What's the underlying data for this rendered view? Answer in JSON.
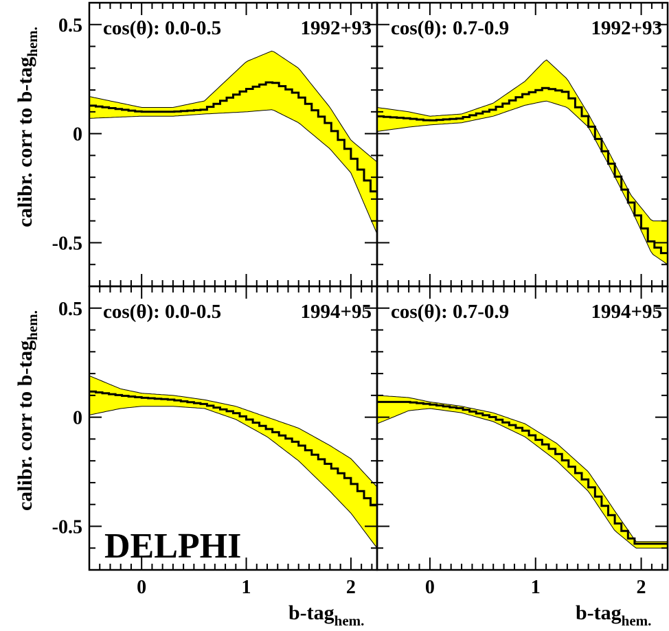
{
  "figure": {
    "ylabel": "calibr. corr to b-tag",
    "ylabel_sub": "hem.",
    "xlabel": "b-tag",
    "xlabel_sub": "hem.",
    "logo": "DELPHI",
    "band_color": "#ffff00",
    "curve_color": "#000000"
  },
  "chart_data": [
    {
      "type": "line",
      "row": 0,
      "col": 0,
      "label_left": "cos(θ): 0.0-0.5",
      "label_right": "1992+93",
      "xlim": [
        -0.5,
        2.25
      ],
      "ylim": [
        -0.7,
        0.6
      ],
      "x_ticks": [
        0,
        1,
        2
      ],
      "y_ticks": [
        -0.5,
        0,
        0.5
      ],
      "x": [
        -0.5,
        0.0,
        0.3,
        0.6,
        1.0,
        1.25,
        1.5,
        1.8,
        2.0,
        2.25
      ],
      "center": [
        0.13,
        0.1,
        0.1,
        0.11,
        0.2,
        0.24,
        0.18,
        0.04,
        -0.09,
        -0.29
      ],
      "upper": [
        0.17,
        0.12,
        0.12,
        0.15,
        0.33,
        0.38,
        0.3,
        0.12,
        -0.03,
        -0.13
      ],
      "lower": [
        0.07,
        0.08,
        0.08,
        0.09,
        0.1,
        0.11,
        0.05,
        -0.07,
        -0.18,
        -0.46
      ]
    },
    {
      "type": "line",
      "row": 0,
      "col": 1,
      "label_left": "cos(θ): 0.7-0.9",
      "label_right": "1992+93",
      "xlim": [
        -0.5,
        2.25
      ],
      "ylim": [
        -0.7,
        0.6
      ],
      "x_ticks": [
        0,
        1,
        2
      ],
      "y_ticks": [
        -0.5,
        0,
        0.5
      ],
      "x": [
        -0.5,
        -0.2,
        0.0,
        0.3,
        0.6,
        0.9,
        1.1,
        1.3,
        1.5,
        1.7,
        1.9,
        2.1,
        2.25
      ],
      "center": [
        0.08,
        0.07,
        0.06,
        0.07,
        0.11,
        0.18,
        0.21,
        0.19,
        0.06,
        -0.12,
        -0.31,
        -0.5,
        -0.56
      ],
      "upper": [
        0.12,
        0.1,
        0.08,
        0.09,
        0.14,
        0.24,
        0.34,
        0.25,
        0.09,
        -0.09,
        -0.28,
        -0.4,
        -0.4
      ],
      "lower": [
        0.01,
        0.03,
        0.04,
        0.05,
        0.08,
        0.13,
        0.15,
        0.12,
        0.03,
        -0.15,
        -0.34,
        -0.55,
        -0.6
      ]
    },
    {
      "type": "line",
      "row": 1,
      "col": 0,
      "label_left": "cos(θ): 0.0-0.5",
      "label_right": "1994+95",
      "xlim": [
        -0.5,
        2.25
      ],
      "ylim": [
        -0.7,
        0.6
      ],
      "x_ticks": [
        0,
        1,
        2
      ],
      "y_ticks": [
        -0.5,
        0,
        0.5
      ],
      "x": [
        -0.5,
        -0.2,
        0.0,
        0.3,
        0.6,
        0.9,
        1.2,
        1.5,
        1.8,
        2.0,
        2.25
      ],
      "center": [
        0.12,
        0.1,
        0.09,
        0.08,
        0.06,
        0.02,
        -0.05,
        -0.12,
        -0.22,
        -0.29,
        -0.42
      ],
      "upper": [
        0.19,
        0.13,
        0.11,
        0.1,
        0.08,
        0.05,
        0.0,
        -0.05,
        -0.13,
        -0.19,
        -0.32
      ],
      "lower": [
        0.01,
        0.04,
        0.05,
        0.05,
        0.04,
        -0.01,
        -0.09,
        -0.2,
        -0.34,
        -0.44,
        -0.6
      ]
    },
    {
      "type": "line",
      "row": 1,
      "col": 1,
      "label_left": "cos(θ): 0.7-0.9",
      "label_right": "1994+95",
      "xlim": [
        -0.5,
        2.25
      ],
      "ylim": [
        -0.7,
        0.6
      ],
      "x_ticks": [
        0,
        1,
        2
      ],
      "y_ticks": [
        -0.5,
        0,
        0.5
      ],
      "x": [
        -0.5,
        -0.2,
        0.0,
        0.3,
        0.6,
        0.9,
        1.2,
        1.5,
        1.75,
        1.95,
        2.25
      ],
      "center": [
        0.07,
        0.07,
        0.06,
        0.04,
        0.0,
        -0.06,
        -0.16,
        -0.3,
        -0.47,
        -0.58,
        -0.58
      ],
      "upper": [
        0.1,
        0.09,
        0.07,
        0.05,
        0.02,
        -0.03,
        -0.12,
        -0.25,
        -0.43,
        -0.57,
        -0.57
      ],
      "lower": [
        -0.03,
        0.03,
        0.04,
        0.02,
        -0.02,
        -0.09,
        -0.2,
        -0.34,
        -0.52,
        -0.6,
        -0.6
      ]
    }
  ]
}
